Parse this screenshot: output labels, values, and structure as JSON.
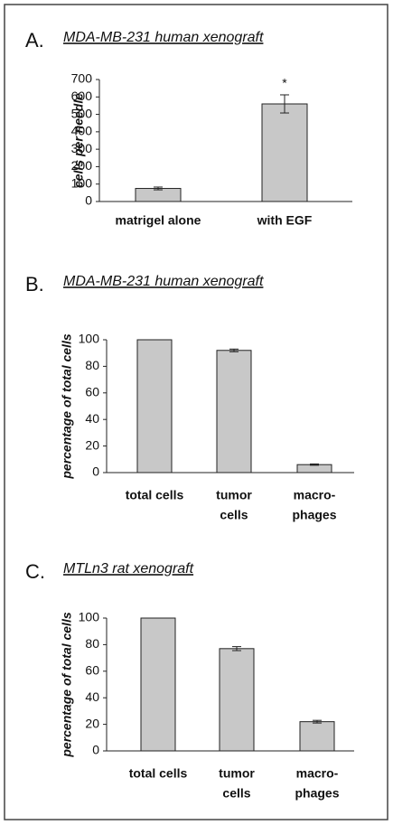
{
  "chart_data": [
    {
      "type": "bar",
      "panel": "A.",
      "title": "MDA-MB-231 human xenograft",
      "ylabel": "cells per needle",
      "categories": [
        [
          "matrigel alone"
        ],
        [
          "with EGF"
        ]
      ],
      "values": [
        75,
        560
      ],
      "errors": [
        8,
        52
      ],
      "annotation": "*",
      "color": "#c8c8c8",
      "ylim": [
        0,
        700
      ],
      "yticks": [
        0,
        100,
        200,
        300,
        400,
        500,
        600,
        700
      ]
    },
    {
      "type": "bar",
      "panel": "B.",
      "title": "MDA-MB-231 human xenograft",
      "ylabel": "percentage of total cells",
      "categories": [
        [
          "total cells"
        ],
        [
          "tumor",
          "cells"
        ],
        [
          "macro-",
          "phages"
        ]
      ],
      "values": [
        100,
        92,
        6
      ],
      "errors": [
        null,
        1,
        0.5
      ],
      "color": "#c8c8c8",
      "ylim": [
        0,
        100
      ],
      "yticks": [
        0,
        20,
        40,
        60,
        80,
        100
      ]
    },
    {
      "type": "bar",
      "panel": "C.",
      "title": "MTLn3 rat xenograft",
      "ylabel": "percentage of total cells",
      "categories": [
        [
          "total cells"
        ],
        [
          "tumor",
          "cells"
        ],
        [
          "macro-",
          "phages"
        ]
      ],
      "values": [
        100,
        77,
        22
      ],
      "errors": [
        null,
        1.5,
        1
      ],
      "color": "#c8c8c8",
      "ylim": [
        0,
        100
      ],
      "yticks": [
        0,
        20,
        40,
        60,
        80,
        100
      ]
    }
  ]
}
